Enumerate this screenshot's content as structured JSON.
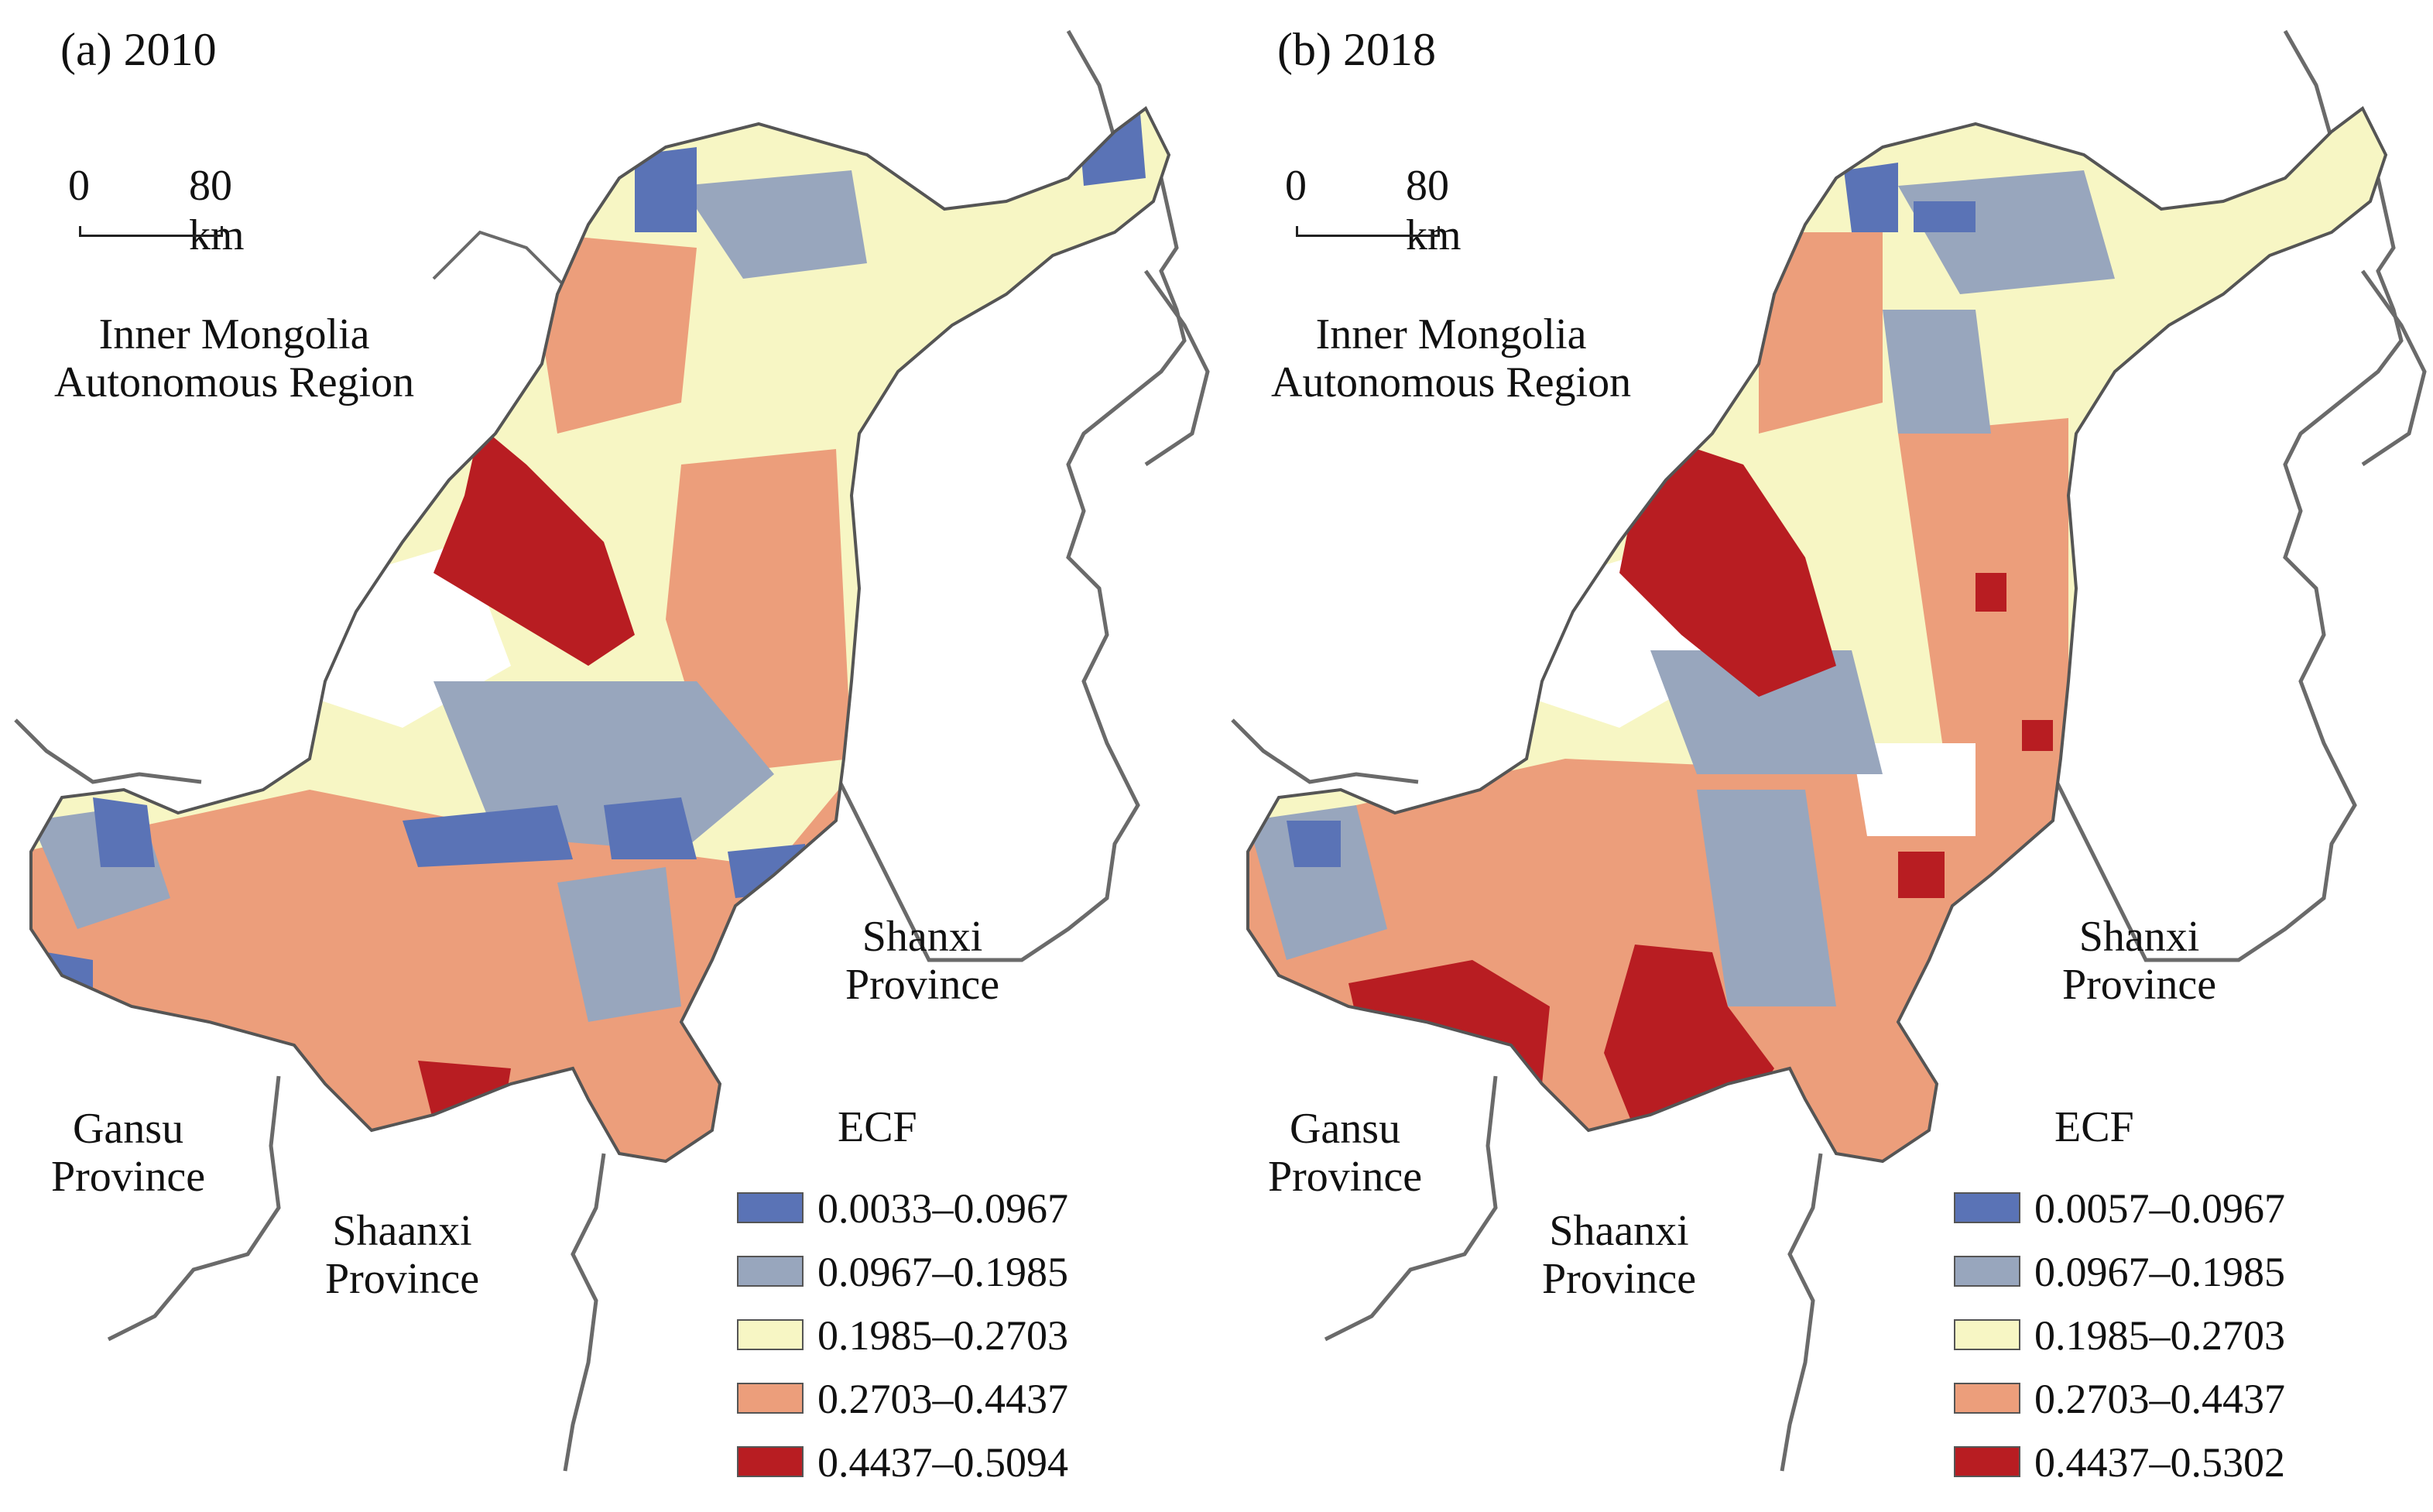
{
  "legend_colors": [
    "#5a73b6",
    "#98a6bd",
    "#f7f6c4",
    "#ec9e7b",
    "#b81d22"
  ],
  "panels": [
    {
      "title": "(a) 2010",
      "scale": {
        "zero": "0",
        "dist": "80 km"
      },
      "regions": {
        "inner_mongolia": "Inner Mongolia\nAutonomous Region",
        "shanxi": "Shanxi\nProvince",
        "gansu": "Gansu\nProvince",
        "shaanxi": "Shaanxi\nProvince"
      },
      "legend": {
        "title": "ECF",
        "classes": [
          "0.0033–0.0967",
          "0.0967–0.1985",
          "0.1985–0.2703",
          "0.2703–0.4437",
          "0.4437–0.5094"
        ]
      }
    },
    {
      "title": "(b) 2018",
      "scale": {
        "zero": "0",
        "dist": "80 km"
      },
      "regions": {
        "inner_mongolia": "Inner Mongolia\nAutonomous Region",
        "shanxi": "Shanxi\nProvince",
        "gansu": "Gansu\nProvince",
        "shaanxi": "Shaanxi\nProvince"
      },
      "legend": {
        "title": "ECF",
        "classes": [
          "0.0057–0.0967",
          "0.0967–0.1985",
          "0.1985–0.2703",
          "0.2703–0.4437",
          "0.4437–0.5302"
        ]
      }
    }
  ]
}
